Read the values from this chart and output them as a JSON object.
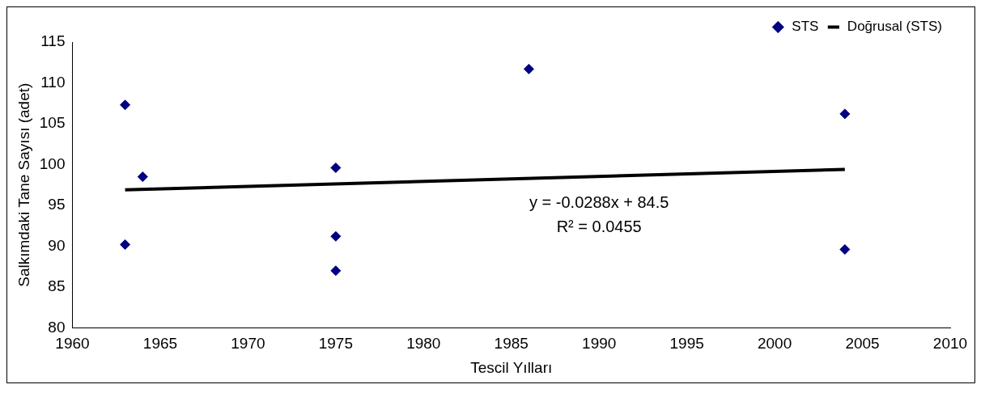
{
  "chart_data": {
    "type": "scatter",
    "xlabel": "Tescil Yılları",
    "ylabel": "Salkımdaki Tane Sayısı (adet)",
    "xlim": [
      1960,
      2010
    ],
    "xticks": [
      1960,
      1965,
      1970,
      1975,
      1980,
      1985,
      1990,
      1995,
      2000,
      2005,
      2010
    ],
    "ylim": [
      80,
      115
    ],
    "yticks": [
      80,
      85,
      90,
      95,
      100,
      105,
      110,
      115
    ],
    "grid": false,
    "legend": "top right",
    "marker": "diamond",
    "series": [
      {
        "name": "STS",
        "color": "#000080",
        "x": [
          1963,
          1963,
          1964,
          1975,
          1975,
          1975,
          1986,
          2004,
          2004
        ],
        "values": [
          107.3,
          90.2,
          98.5,
          99.6,
          91.2,
          87.0,
          111.7,
          106.2,
          89.6
        ]
      },
      {
        "name": "Doğrusal (STS)",
        "type": "line",
        "color": "#000000",
        "marker": "none",
        "line_style": "solid",
        "x": [
          1963,
          2004
        ],
        "values": [
          96.9,
          99.4
        ]
      }
    ],
    "annotations": [
      "y = -0.0288x + 84.5",
      "R² = 0.0455"
    ]
  }
}
